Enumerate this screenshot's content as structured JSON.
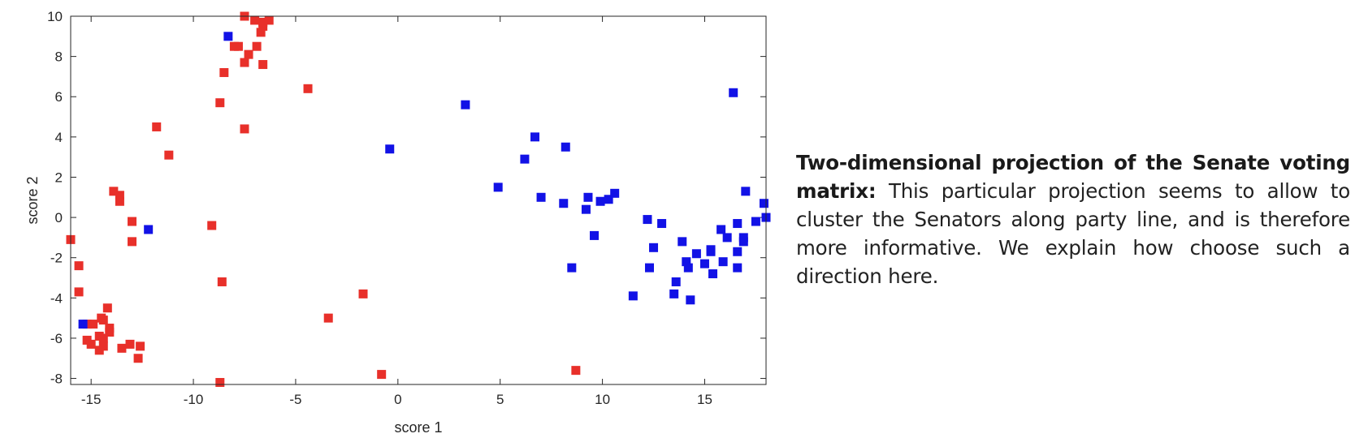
{
  "chart_data": {
    "type": "scatter",
    "xlabel": "score 1",
    "ylabel": "score 2",
    "xlim": [
      -16,
      18
    ],
    "ylim": [
      -8.3,
      10
    ],
    "xticks": [
      -15,
      -10,
      -5,
      0,
      5,
      10,
      15
    ],
    "yticks": [
      -8,
      -6,
      -4,
      -2,
      0,
      2,
      4,
      6,
      8,
      10
    ],
    "colors": {
      "red": "#e8302a",
      "blue": "#1212e6"
    },
    "series": [
      {
        "color": "#e8302a",
        "points": [
          [
            -7.5,
            10.0
          ],
          [
            -7.0,
            9.8
          ],
          [
            -6.6,
            9.7
          ],
          [
            -6.3,
            9.8
          ],
          [
            -6.7,
            9.2
          ],
          [
            -6.6,
            9.5
          ],
          [
            -8.0,
            8.5
          ],
          [
            -7.8,
            8.5
          ],
          [
            -6.9,
            8.5
          ],
          [
            -7.3,
            8.1
          ],
          [
            -7.5,
            7.7
          ],
          [
            -6.6,
            7.6
          ],
          [
            -8.5,
            7.2
          ],
          [
            -8.7,
            5.7
          ],
          [
            -7.5,
            4.4
          ],
          [
            -4.4,
            6.4
          ],
          [
            -11.8,
            4.5
          ],
          [
            -11.2,
            3.1
          ],
          [
            -13.9,
            1.3
          ],
          [
            -13.6,
            1.1
          ],
          [
            -13.6,
            0.8
          ],
          [
            -13.0,
            -0.2
          ],
          [
            -13.0,
            -1.2
          ],
          [
            -16.0,
            -1.1
          ],
          [
            -15.6,
            -2.4
          ],
          [
            -15.6,
            -3.7
          ],
          [
            -9.1,
            -0.4
          ],
          [
            -8.6,
            -3.2
          ],
          [
            -1.7,
            -3.8
          ],
          [
            -3.4,
            -5.0
          ],
          [
            -14.2,
            -4.5
          ],
          [
            -15.2,
            -5.3
          ],
          [
            -14.9,
            -5.3
          ],
          [
            -14.6,
            -5.9
          ],
          [
            -14.5,
            -5.0
          ],
          [
            -14.4,
            -5.1
          ],
          [
            -14.1,
            -5.5
          ],
          [
            -14.1,
            -5.7
          ],
          [
            -14.4,
            -6.4
          ],
          [
            -14.6,
            -6.6
          ],
          [
            -15.2,
            -6.1
          ],
          [
            -15.0,
            -6.3
          ],
          [
            -13.5,
            -6.5
          ],
          [
            -13.1,
            -6.3
          ],
          [
            -12.6,
            -6.4
          ],
          [
            -12.7,
            -7.0
          ],
          [
            -8.7,
            -8.2
          ],
          [
            -0.8,
            -7.8
          ],
          [
            8.7,
            -7.6
          ],
          [
            -14.4,
            -6.0
          ]
        ]
      },
      {
        "color": "#1212e6",
        "points": [
          [
            -8.3,
            9.0
          ],
          [
            -12.2,
            -0.6
          ],
          [
            -15.4,
            -5.3
          ],
          [
            -0.4,
            3.4
          ],
          [
            3.3,
            5.6
          ],
          [
            4.9,
            1.5
          ],
          [
            6.2,
            2.9
          ],
          [
            6.7,
            4.0
          ],
          [
            7.0,
            1.0
          ],
          [
            8.2,
            3.5
          ],
          [
            8.1,
            0.7
          ],
          [
            9.3,
            1.0
          ],
          [
            9.2,
            0.4
          ],
          [
            9.6,
            -0.9
          ],
          [
            9.9,
            0.8
          ],
          [
            10.3,
            0.9
          ],
          [
            10.6,
            1.2
          ],
          [
            8.5,
            -2.5
          ],
          [
            11.5,
            -3.9
          ],
          [
            12.2,
            -0.1
          ],
          [
            12.3,
            -2.5
          ],
          [
            12.5,
            -1.5
          ],
          [
            12.9,
            -0.3
          ],
          [
            13.6,
            -3.2
          ],
          [
            13.5,
            -3.8
          ],
          [
            13.9,
            -1.2
          ],
          [
            14.1,
            -2.2
          ],
          [
            14.2,
            -2.5
          ],
          [
            14.3,
            -4.1
          ],
          [
            14.6,
            -1.8
          ],
          [
            15.0,
            -2.3
          ],
          [
            15.3,
            -1.6
          ],
          [
            15.3,
            -1.7
          ],
          [
            15.4,
            -2.8
          ],
          [
            15.8,
            -0.6
          ],
          [
            15.9,
            -2.2
          ],
          [
            16.1,
            -1.0
          ],
          [
            16.4,
            6.2
          ],
          [
            16.6,
            -0.3
          ],
          [
            16.6,
            -1.7
          ],
          [
            16.6,
            -2.5
          ],
          [
            16.9,
            -1.0
          ],
          [
            16.9,
            -1.2
          ],
          [
            17.0,
            1.3
          ],
          [
            17.5,
            -0.2
          ],
          [
            17.9,
            0.7
          ],
          [
            18.0,
            0.0
          ]
        ]
      }
    ]
  },
  "caption": {
    "title": "Two-dimensional projection of the Senate voting matrix:",
    "body": "This particular projection seems to allow to cluster the Senators along party line, and is therefore more informative. We explain how choose such a direction here."
  }
}
